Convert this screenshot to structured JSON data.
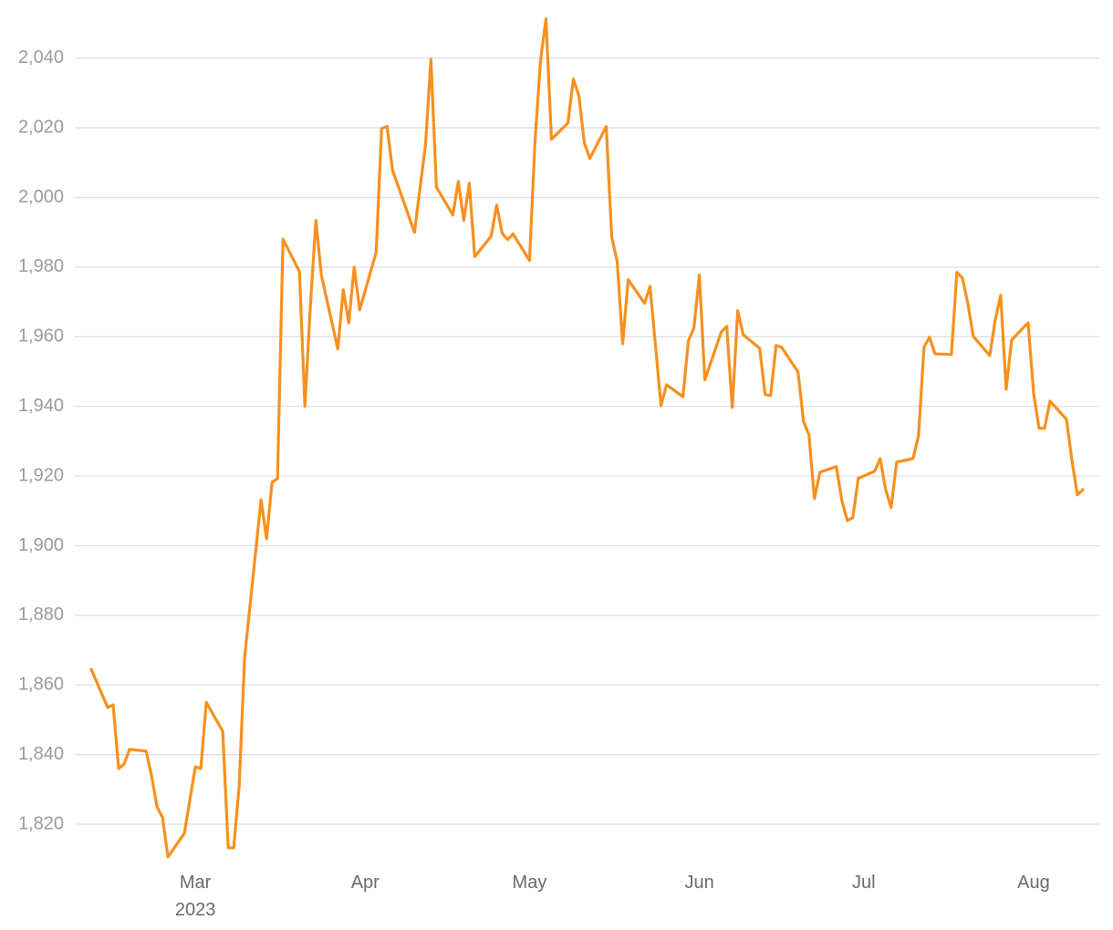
{
  "chart_data": {
    "type": "line",
    "color": "#f7901e",
    "grid": true,
    "x": [
      41,
      44,
      45,
      46,
      47,
      48,
      51,
      52,
      53,
      54,
      55,
      58,
      60,
      61,
      62,
      65,
      66,
      67,
      68,
      69,
      72,
      73,
      74,
      75,
      76,
      79,
      80,
      81,
      82,
      83,
      86,
      87,
      88,
      89,
      90,
      93,
      94,
      95,
      96,
      100,
      101,
      102,
      103,
      104,
      107,
      108,
      109,
      110,
      111,
      114,
      115,
      116,
      117,
      118,
      121,
      122,
      123,
      124,
      125,
      128,
      129,
      130,
      131,
      132,
      135,
      136,
      137,
      138,
      139,
      142,
      143,
      144,
      145,
      146,
      149,
      150,
      151,
      152,
      153,
      156,
      157,
      158,
      159,
      160,
      163,
      164,
      165,
      166,
      167,
      170,
      171,
      172,
      173,
      174,
      177,
      178,
      179,
      180,
      181,
      184,
      185,
      186,
      187,
      188,
      191,
      192,
      193,
      194,
      195,
      198,
      199,
      200,
      201,
      202,
      205,
      206,
      207,
      208,
      209,
      212,
      213,
      214,
      215,
      216,
      219,
      220,
      221,
      222
    ],
    "values": [
      1864.5,
      1853.5,
      1854.3,
      1836,
      1837.3,
      1841.5,
      1841,
      1834,
      1825,
      1822,
      1810.6,
      1817.4,
      1836.5,
      1836,
      1855,
      1846.7,
      1813.2,
      1813.2,
      1831,
      1868,
      1913.2,
      1902,
      1918.2,
      1919.3,
      1988,
      1978.7,
      1940,
      1969,
      1993.4,
      1977.7,
      1956.5,
      1973.5,
      1964,
      1980,
      1967.7,
      1984.2,
      2019.8,
      2020.4,
      2007.8,
      1990,
      2002.6,
      2014.9,
      2039.7,
      2003,
      1995,
      2004.6,
      1993.4,
      2004.1,
      1983,
      1988.9,
      1997.8,
      1989.7,
      1987.9,
      1989.5,
      1981.9,
      2016.2,
      2039.2,
      2051.3,
      2016.7,
      2021.4,
      2034,
      2029.3,
      2015.7,
      2011.2,
      2020.4,
      1988.7,
      1981.6,
      1958,
      1976.4,
      1969.6,
      1974.5,
      1957.2,
      1940.2,
      1946.2,
      1942.8,
      1958.8,
      1962.5,
      1977.7,
      1947.6,
      1961.4,
      1963,
      1939.7,
      1967.5,
      1960.6,
      1956.7,
      1943.4,
      1943.1,
      1957.5,
      1957,
      1949.9,
      1935.8,
      1931.8,
      1913.5,
      1921.1,
      1922.7,
      1913,
      1907.2,
      1908,
      1919.3,
      1921.4,
      1925,
      1916.1,
      1910.9,
      1924,
      1925,
      1931.6,
      1957,
      1959.9,
      1955.1,
      1954.9,
      1978.5,
      1976.9,
      1969.6,
      1960.1,
      1954.6,
      1964.8,
      1971.9,
      1944.9,
      1959.1,
      1964,
      1943.9,
      1933.7,
      1933.7,
      1941.5,
      1936.3,
      1924.5,
      1914.6,
      1916.1
    ],
    "xlim": [
      38,
      225
    ],
    "xticks": [
      {
        "value": 60,
        "label": "Mar\n2023"
      },
      {
        "value": 91,
        "label": "Apr"
      },
      {
        "value": 121,
        "label": "May"
      },
      {
        "value": 152,
        "label": "Jun"
      },
      {
        "value": 182,
        "label": "Jul"
      },
      {
        "value": 213,
        "label": "Aug"
      }
    ],
    "ylim": [
      1809,
      2052
    ],
    "yticks": [
      {
        "value": 1820,
        "label": "1,820"
      },
      {
        "value": 1840,
        "label": "1,840"
      },
      {
        "value": 1860,
        "label": "1,860"
      },
      {
        "value": 1880,
        "label": "1,880"
      },
      {
        "value": 1900,
        "label": "1,900"
      },
      {
        "value": 1920,
        "label": "1,920"
      },
      {
        "value": 1940,
        "label": "1,940"
      },
      {
        "value": 1960,
        "label": "1,960"
      },
      {
        "value": 1980,
        "label": "1,980"
      },
      {
        "value": 2000,
        "label": "2,000"
      },
      {
        "value": 2020,
        "label": "2,020"
      },
      {
        "value": 2040,
        "label": "2,040"
      }
    ]
  }
}
